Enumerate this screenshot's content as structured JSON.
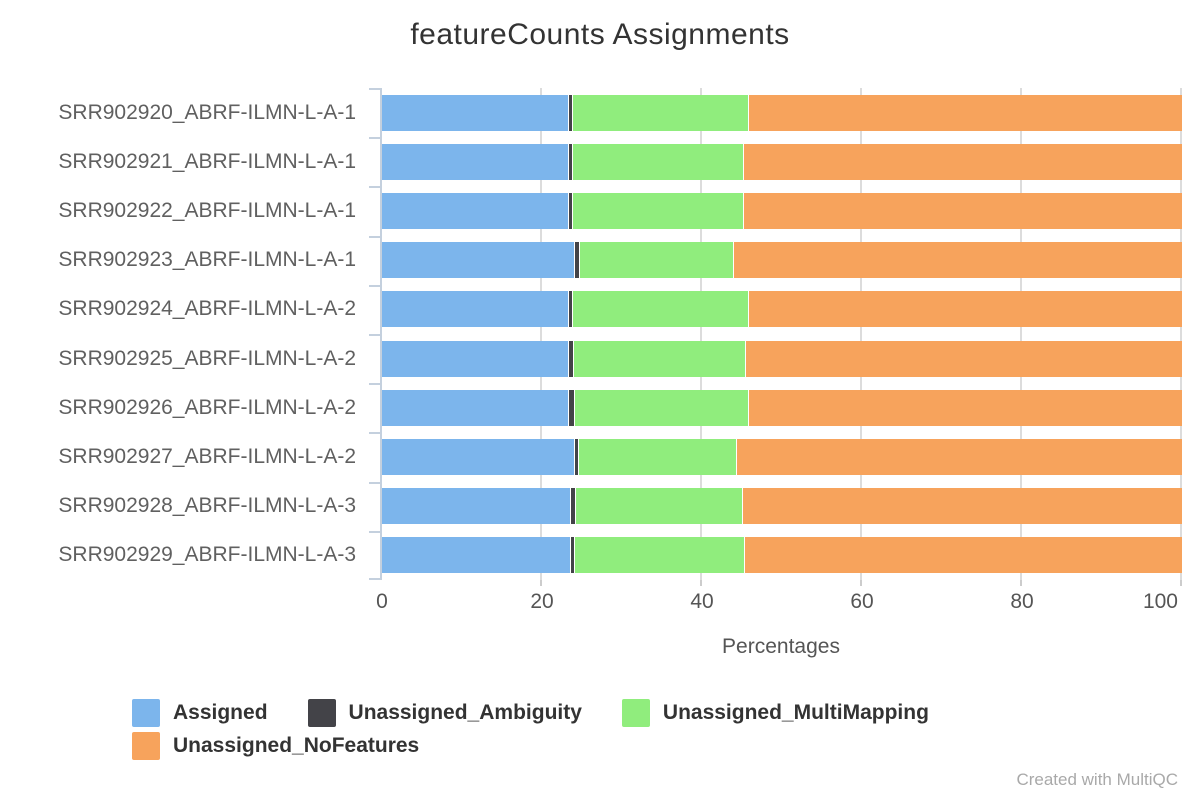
{
  "watermark": {
    "text": "Created with MultiQC"
  },
  "colors": {
    "assigned": "#7cb5ec",
    "ambiguity": "#434348",
    "multimapping": "#90ed7d",
    "nofeatures": "#f7a35c",
    "gridline": "#dcdcdc",
    "axis_line": "#c4d0de",
    "title_text": "#333333",
    "axis_text": "#555555",
    "watermark_text": "#a9a9a9"
  },
  "chart_data": {
    "type": "bar",
    "orientation": "horizontal",
    "stacked": true,
    "percentage": true,
    "title": "featureCounts Assignments",
    "xlabel": "Percentages",
    "ylabel": "",
    "xticks": [
      0,
      20,
      40,
      60,
      80,
      100
    ],
    "xlim": [
      0,
      100
    ],
    "grid": true,
    "legend_position": "bottom",
    "categories": [
      "SRR902920_ABRF-ILMN-L-A-1",
      "SRR902921_ABRF-ILMN-L-A-1",
      "SRR902922_ABRF-ILMN-L-A-1",
      "SRR902923_ABRF-ILMN-L-A-1",
      "SRR902924_ABRF-ILMN-L-A-2",
      "SRR902925_ABRF-ILMN-L-A-2",
      "SRR902926_ABRF-ILMN-L-A-2",
      "SRR902927_ABRF-ILMN-L-A-2",
      "SRR902928_ABRF-ILMN-L-A-3",
      "SRR902929_ABRF-ILMN-L-A-3"
    ],
    "series": [
      {
        "name": "Assigned",
        "color": "#7cb5ec",
        "values": [
          23.3,
          23.3,
          23.2,
          24.0,
          23.3,
          23.3,
          23.3,
          24.0,
          23.5,
          23.5
        ]
      },
      {
        "name": "Unassigned_Ambiguity",
        "color": "#434348",
        "values": [
          0.5,
          0.5,
          0.5,
          0.6,
          0.5,
          0.6,
          0.7,
          0.5,
          0.6,
          0.5
        ]
      },
      {
        "name": "Unassigned_MultiMapping",
        "color": "#90ed7d",
        "values": [
          21.9,
          21.3,
          21.4,
          19.3,
          22.0,
          21.5,
          21.7,
          19.7,
          20.9,
          21.2
        ]
      },
      {
        "name": "Unassigned_NoFeatures",
        "color": "#f7a35c",
        "values": [
          54.3,
          54.9,
          54.9,
          56.1,
          54.2,
          54.6,
          54.3,
          55.8,
          55.0,
          54.8
        ]
      }
    ]
  }
}
